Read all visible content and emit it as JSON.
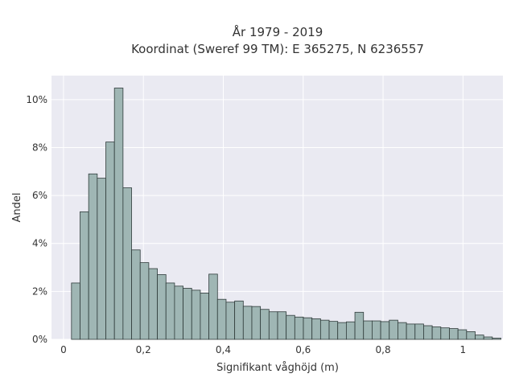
{
  "chart_data": {
    "type": "bar",
    "title_lines": [
      "År 1979 - 2019",
      "Koordinat (Sweref 99 TM): E 365275, N 6236557"
    ],
    "xlabel": "Signifikant våghöjd (m)",
    "ylabel": "Andel",
    "xlim": [
      -0.03,
      1.1
    ],
    "ylim": [
      0,
      0.11
    ],
    "x_ticks": [
      0,
      0.2,
      0.4,
      0.6,
      0.8,
      1.0
    ],
    "x_tick_labels": [
      "0",
      "0,2",
      "0,4",
      "0,6",
      "0,8",
      "1"
    ],
    "y_ticks": [
      0,
      0.02,
      0.04,
      0.06,
      0.08,
      0.1
    ],
    "y_tick_labels": [
      "0%",
      "2%",
      "4%",
      "6%",
      "8%",
      "10%"
    ],
    "grid": true,
    "colors": {
      "plot_background": "#eaeaf2",
      "grid": "#ffffff",
      "bar_fill": "#9fb6b4",
      "bar_edge": "#2f3b3a"
    },
    "bin_start": 0.02,
    "bin_width": 0.0215,
    "values": [
      0.0235,
      0.0532,
      0.069,
      0.0672,
      0.0823,
      0.1048,
      0.0632,
      0.0373,
      0.032,
      0.0295,
      0.027,
      0.0235,
      0.0222,
      0.0213,
      0.0205,
      0.0193,
      0.0272,
      0.0167,
      0.0155,
      0.016,
      0.0138,
      0.0137,
      0.0125,
      0.0115,
      0.0115,
      0.01,
      0.0093,
      0.009,
      0.0086,
      0.008,
      0.0075,
      0.007,
      0.0073,
      0.0113,
      0.0077,
      0.0077,
      0.0074,
      0.008,
      0.007,
      0.0064,
      0.0064,
      0.0057,
      0.0052,
      0.0048,
      0.0045,
      0.004,
      0.0032,
      0.0018,
      0.001,
      0.0005
    ]
  }
}
